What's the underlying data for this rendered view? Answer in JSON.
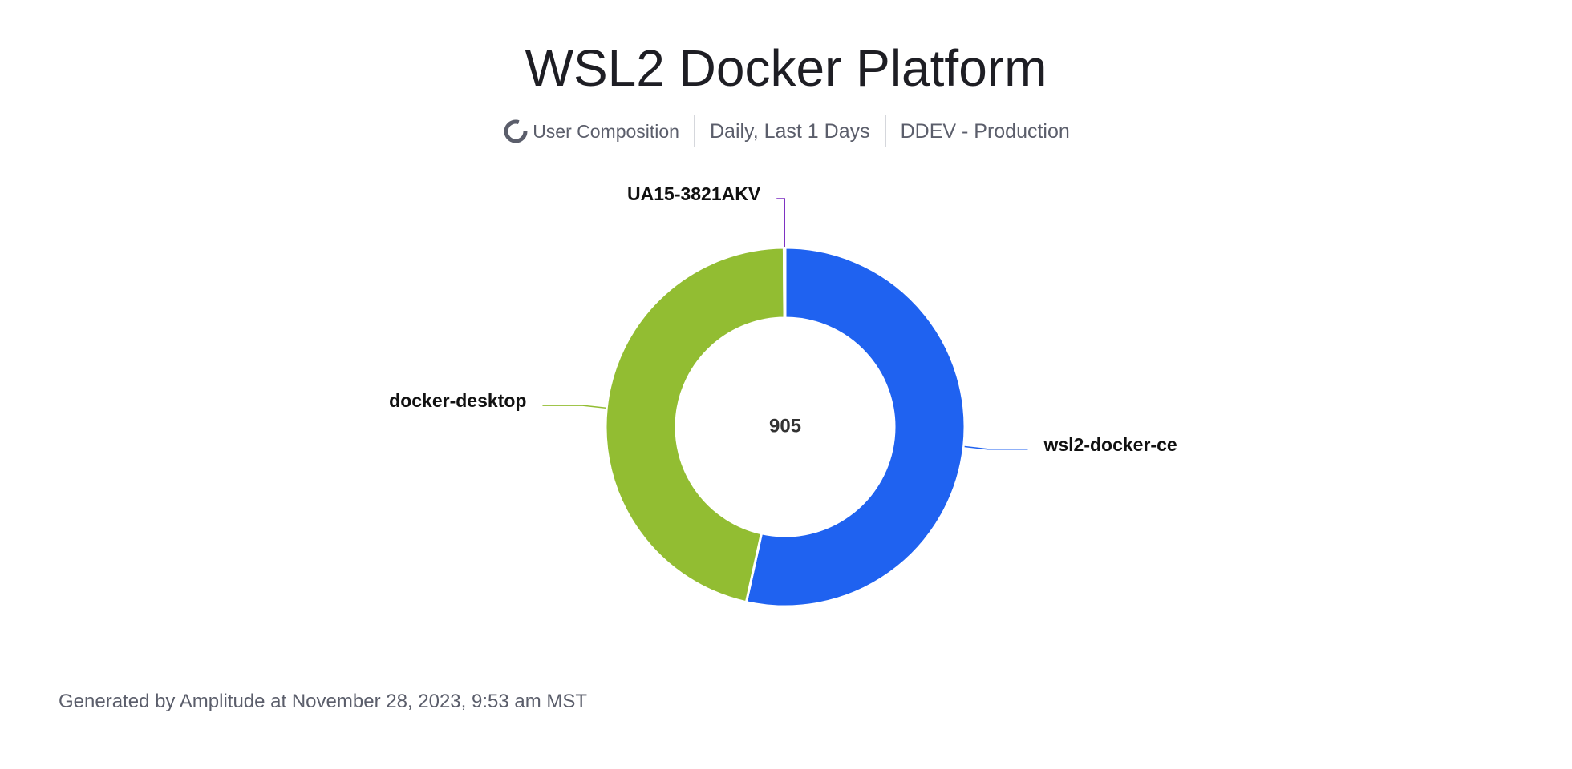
{
  "chart_data": {
    "type": "pie",
    "title": "WSL2 Docker Platform",
    "subtitle": [
      "User Composition",
      "Daily, Last 1 Days",
      "DDEV - Production"
    ],
    "center_label": 905,
    "categories": [
      "wsl2-docker-ce",
      "docker-desktop",
      "UA15-3821AKV"
    ],
    "values": [
      484,
      420,
      1
    ],
    "colors": [
      "#1f62f0",
      "#92bd32",
      "#7a2cc0"
    ],
    "footer": "Generated by Amplitude at November 28, 2023, 9:53 am MST"
  }
}
